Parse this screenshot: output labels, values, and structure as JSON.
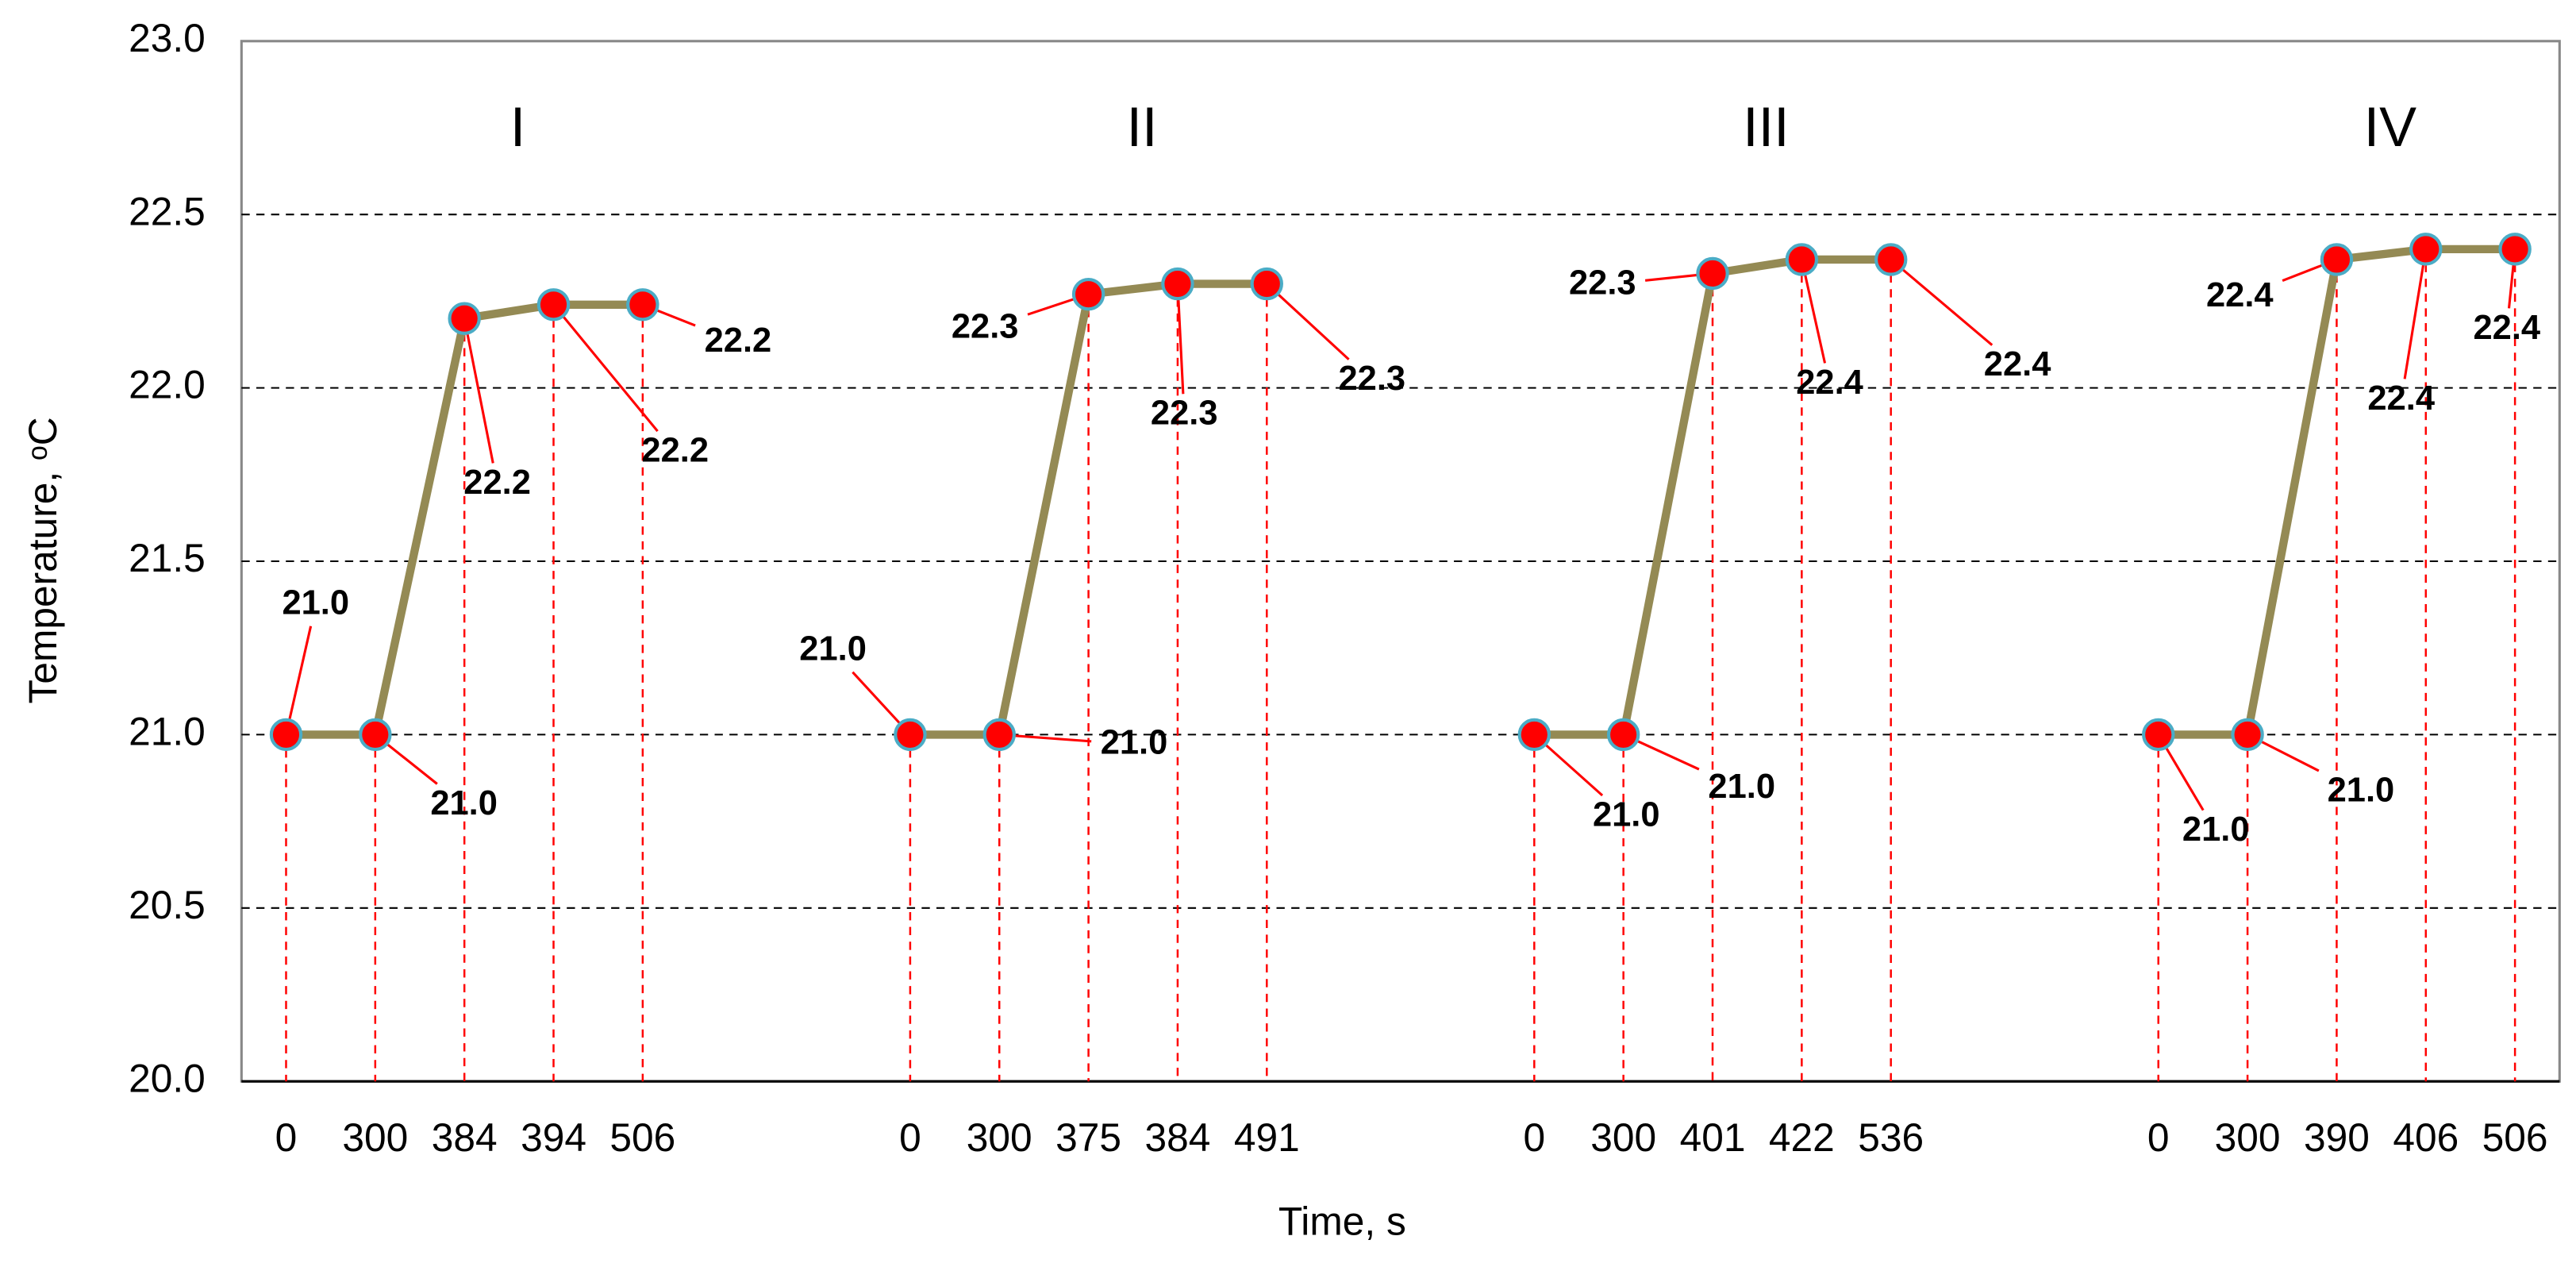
{
  "chart_data": {
    "type": "line",
    "x_label": "Time, s",
    "y_label": "Temperature, ᵒC",
    "annotations": [
      "I",
      "II",
      "III",
      "IV"
    ],
    "categories": [
      "0",
      "300",
      "384",
      "394",
      "506",
      null,
      null,
      "0",
      "300",
      "375",
      "384",
      "491",
      null,
      null,
      "0",
      "300",
      "401",
      "422",
      "536",
      null,
      null,
      "0",
      "300",
      "390",
      "406",
      "506"
    ],
    "series": [
      {
        "color": "#948a54",
        "marker_color": "#ff0000",
        "marker_edge": "#4bacc6",
        "values": [
          21.0,
          21.0,
          22.2,
          22.24,
          22.24,
          null,
          null,
          21.0,
          21.0,
          22.27,
          22.3,
          22.3,
          null,
          null,
          21.0,
          21.0,
          22.33,
          22.37,
          22.37,
          null,
          null,
          21.0,
          21.0,
          22.37,
          22.4,
          22.4
        ],
        "value_labels": [
          "21.0",
          "21.0",
          "22.2",
          "22.2",
          "22.2",
          null,
          null,
          "21.0",
          "21.0",
          "22.3",
          "22.3",
          "22.3",
          null,
          null,
          "21.0",
          "21.0",
          "22.3",
          "22.4",
          "22.4",
          null,
          null,
          "21.0",
          "21.0",
          "22.4",
          "22.4",
          "22.4"
        ]
      }
    ],
    "ylim": [
      20,
      23
    ],
    "yticks": [
      {
        "value": 20,
        "label": "20.0"
      },
      {
        "value": 20.5,
        "label": "20.5"
      },
      {
        "value": 21,
        "label": "21.0"
      },
      {
        "value": 21.5,
        "label": "21.5"
      },
      {
        "value": 22,
        "label": "22.0"
      },
      {
        "value": 22.5,
        "label": "22.5"
      },
      {
        "value": 23,
        "label": "23.0"
      }
    ],
    "grid": true,
    "drop_line_color": "#ff0000"
  }
}
